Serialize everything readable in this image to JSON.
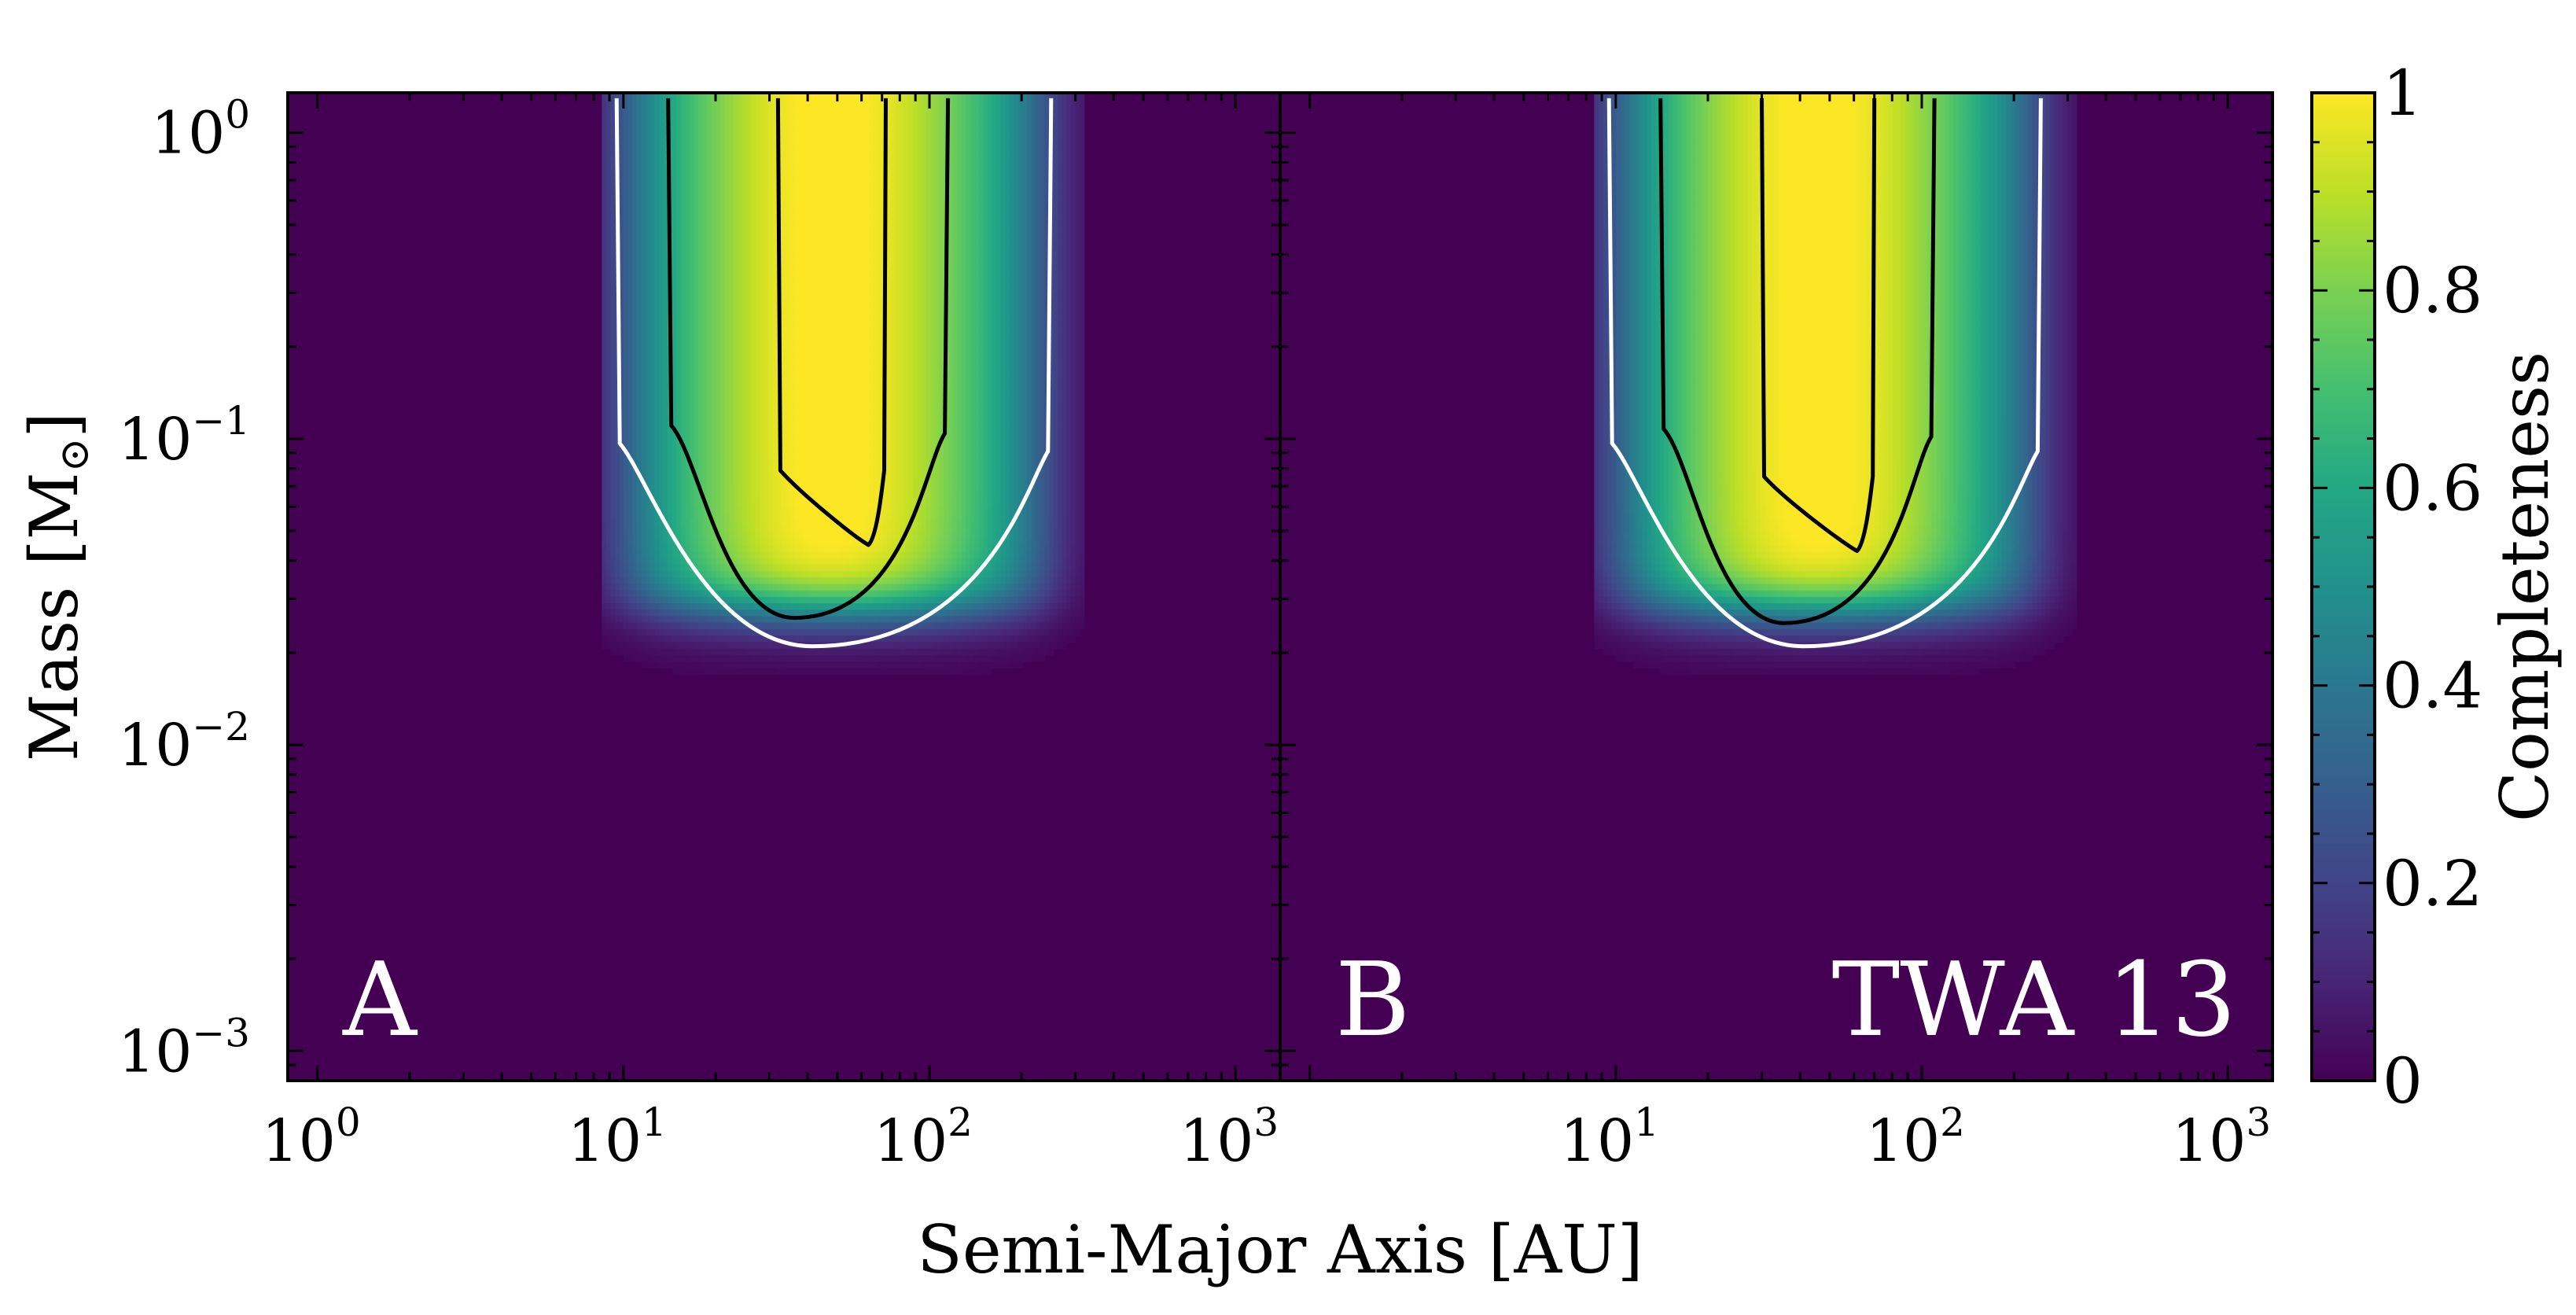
{
  "figure": {
    "xlabel": "Semi-Major Axis [AU]",
    "ylabel": "Mass [M",
    "ylabel_symbol": "⊙",
    "ylabel_close": "]"
  },
  "colorbar": {
    "label": "Completeness",
    "ticks": [
      "0",
      "0.2",
      "0.4",
      "0.6",
      "0.8",
      "1"
    ],
    "colormap": "viridis"
  },
  "axis_ticks": {
    "x": [
      {
        "base": "10",
        "exp": "0"
      },
      {
        "base": "10",
        "exp": "1"
      },
      {
        "base": "10",
        "exp": "2"
      },
      {
        "base": "10",
        "exp": "3"
      }
    ],
    "y": [
      {
        "base": "10",
        "exp": "0"
      },
      {
        "base": "10",
        "exp": "−1"
      },
      {
        "base": "10",
        "exp": "−2"
      },
      {
        "base": "10",
        "exp": "−3"
      }
    ]
  },
  "panels": {
    "a": {
      "label": "A",
      "star": ""
    },
    "b": {
      "label": "B",
      "star": "TWA 13"
    }
  },
  "colors": {
    "background": "#440154",
    "contour_outer": "#ffffff",
    "contour_inner": "#000000"
  },
  "chart_data": {
    "type": "heatmap",
    "layout": "two panels side by side, shared colorbar on right",
    "x_scale": "log",
    "y_scale": "log",
    "xlim_au": [
      0.8,
      1400
    ],
    "ylim_msun": [
      0.0008,
      1.35
    ],
    "zlim": [
      0,
      1
    ],
    "contour_levels": [
      0.1,
      0.5,
      0.9
    ],
    "contour_colors": [
      "white",
      "black",
      "black"
    ],
    "panels": [
      {
        "label": "A",
        "completeness_region": {
          "a_10pct_au": [
            9.5,
            250
          ],
          "a_50pct_au": [
            14,
            115
          ],
          "a_90pct_au": [
            32,
            72
          ],
          "m_min_10pct": 0.021,
          "m_min_50pct": 0.026,
          "m_min_90pct": 0.045
        }
      },
      {
        "label": "B",
        "completeness_region": {
          "a_10pct_au": [
            9.5,
            245
          ],
          "a_50pct_au": [
            14,
            110
          ],
          "a_90pct_au": [
            30,
            70
          ],
          "m_min_10pct": 0.021,
          "m_min_50pct": 0.025,
          "m_min_90pct": 0.043
        }
      }
    ]
  }
}
